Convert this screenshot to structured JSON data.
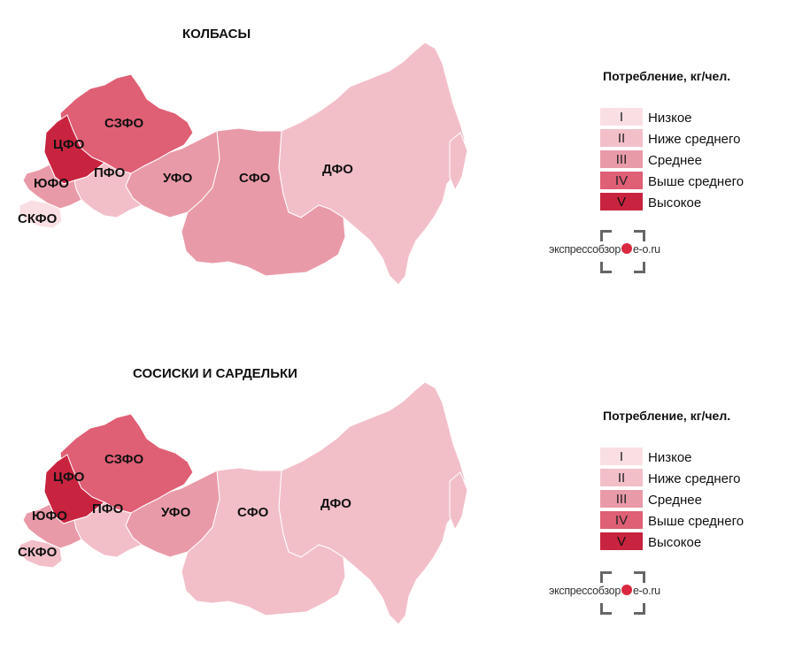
{
  "legend": {
    "title": "Потребление, кг/чел.",
    "levels": [
      {
        "roman": "I",
        "label": "Низкое",
        "color": "#f9dfe4"
      },
      {
        "roman": "II",
        "label": "Ниже среднего",
        "color": "#f2bfc9"
      },
      {
        "roman": "III",
        "label": "Среднее",
        "color": "#e99aa8"
      },
      {
        "roman": "IV",
        "label": "Выше среднего",
        "color": "#df5f75"
      },
      {
        "roman": "V",
        "label": "Высокое",
        "color": "#c8233f"
      }
    ]
  },
  "logo": {
    "left_text": "экспрессобзор",
    "right_text": "e-o.ru"
  },
  "maps": [
    {
      "title": "КОЛБАСЫ",
      "regions": [
        {
          "label": "ЦФО",
          "level": "V"
        },
        {
          "label": "СЗФО",
          "level": "IV"
        },
        {
          "label": "ЮФО",
          "level": "III"
        },
        {
          "label": "СКФО",
          "level": "I"
        },
        {
          "label": "ПФО",
          "level": "II"
        },
        {
          "label": "УФО",
          "level": "III"
        },
        {
          "label": "СФО",
          "level": "III"
        },
        {
          "label": "ДФО",
          "level": "II"
        }
      ]
    },
    {
      "title": "СОСИСКИ И САРДЕЛЬКИ",
      "regions": [
        {
          "label": "ЦФО",
          "level": "V"
        },
        {
          "label": "СЗФО",
          "level": "IV"
        },
        {
          "label": "ЮФО",
          "level": "III"
        },
        {
          "label": "СКФО",
          "level": "II"
        },
        {
          "label": "ПФО",
          "level": "II"
        },
        {
          "label": "УФО",
          "level": "III"
        },
        {
          "label": "СФО",
          "level": "II"
        },
        {
          "label": "ДФО",
          "level": "II"
        }
      ]
    }
  ]
}
